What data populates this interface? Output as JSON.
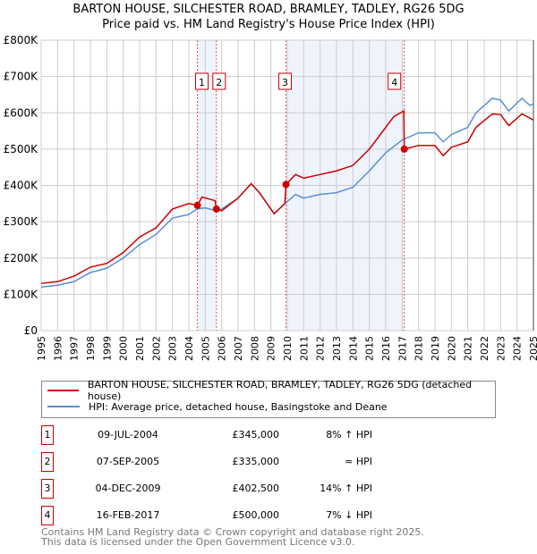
{
  "chart_data": {
    "type": "line",
    "title": "BARTON HOUSE, SILCHESTER ROAD, BRAMLEY, TADLEY, RG26 5DG",
    "subtitle": "Price paid vs. HM Land Registry's House Price Index (HPI)",
    "xlim": [
      1995,
      2025
    ],
    "ylim": [
      0,
      800000
    ],
    "yticks": [
      0,
      100000,
      200000,
      300000,
      400000,
      500000,
      600000,
      700000,
      800000
    ],
    "ytick_labels": [
      "£0",
      "£100K",
      "£200K",
      "£300K",
      "£400K",
      "£500K",
      "£600K",
      "£700K",
      "£800K"
    ],
    "xticks": [
      "1995",
      "1996",
      "1997",
      "1998",
      "1999",
      "2000",
      "2001",
      "2002",
      "2003",
      "2004",
      "2005",
      "2006",
      "2007",
      "2008",
      "2009",
      "2010",
      "2011",
      "2012",
      "2013",
      "2014",
      "2015",
      "2016",
      "2017",
      "2018",
      "2019",
      "2020",
      "2021",
      "2022",
      "2023",
      "2024",
      "2025"
    ],
    "grid": true,
    "series": [
      {
        "name": "BARTON HOUSE, SILCHESTER ROAD, BRAMLEY, TADLEY, RG26 5DG (detached house)",
        "color": "#cc0000",
        "x": [
          1995,
          1996,
          1997,
          1998,
          1999,
          2000,
          2001,
          2002,
          2003,
          2004,
          2004.52,
          2004.8,
          2005.6,
          2005.68,
          2006,
          2007,
          2007.8,
          2008.3,
          2009.2,
          2009.85,
          2009.92,
          2010.5,
          2011,
          2012,
          2013,
          2014,
          2015,
          2016,
          2016.5,
          2017.1,
          2017.13,
          2018,
          2019,
          2019.5,
          2020,
          2021,
          2021.5,
          2022.5,
          2023,
          2023.5,
          2024.3,
          2024.8,
          2025
        ],
        "y": [
          130000,
          135000,
          150000,
          175000,
          185000,
          215000,
          258000,
          283000,
          335000,
          350000,
          345000,
          368000,
          358000,
          335000,
          330000,
          365000,
          405000,
          380000,
          322000,
          350000,
          402500,
          430000,
          420000,
          430000,
          440000,
          455000,
          500000,
          560000,
          590000,
          605000,
          500000,
          510000,
          510000,
          482000,
          505000,
          520000,
          560000,
          597000,
          595000,
          565000,
          597000,
          585000,
          580000
        ]
      },
      {
        "name": "HPI: Average price, detached house, Basingstoke and Deane",
        "color": "#5b8fd0",
        "x": [
          1995,
          1996,
          1997,
          1998,
          1999,
          2000,
          2001,
          2002,
          2003,
          2004,
          2004.5,
          2005,
          2005.7,
          2006,
          2007,
          2007.8,
          2008.3,
          2009.2,
          2009.9,
          2010.5,
          2011,
          2012,
          2013,
          2014,
          2015,
          2016,
          2017,
          2018,
          2019,
          2019.5,
          2020,
          2021,
          2021.5,
          2022.5,
          2023,
          2023.5,
          2024.3,
          2024.8,
          2025
        ],
        "y": [
          120000,
          125000,
          135000,
          160000,
          172000,
          200000,
          237000,
          265000,
          310000,
          320000,
          335000,
          338000,
          330000,
          335000,
          365000,
          405000,
          380000,
          322000,
          352000,
          375000,
          365000,
          375000,
          380000,
          395000,
          440000,
          490000,
          525000,
          545000,
          545000,
          520000,
          540000,
          560000,
          600000,
          640000,
          635000,
          605000,
          640000,
          620000,
          625000
        ]
      }
    ],
    "sales": [
      {
        "id": "1",
        "x": 2004.52,
        "y": 345000
      },
      {
        "id": "2",
        "x": 2005.68,
        "y": 335000
      },
      {
        "id": "3",
        "x": 2009.92,
        "y": 402500
      },
      {
        "id": "4",
        "x": 2017.13,
        "y": 500000
      }
    ]
  },
  "legend": {
    "property": "BARTON HOUSE, SILCHESTER ROAD, BRAMLEY, TADLEY, RG26 5DG (detached house)",
    "hpi": "HPI: Average price, detached house, Basingstoke and Deane"
  },
  "transactions": [
    {
      "n": "1",
      "date": "09-JUL-2004",
      "price": "£345,000",
      "hpi": "8% ↑ HPI"
    },
    {
      "n": "2",
      "date": "07-SEP-2005",
      "price": "£335,000",
      "hpi": "≈ HPI"
    },
    {
      "n": "3",
      "date": "04-DEC-2009",
      "price": "£402,500",
      "hpi": "14% ↑ HPI"
    },
    {
      "n": "4",
      "date": "16-FEB-2017",
      "price": "£500,000",
      "hpi": "7% ↓ HPI"
    }
  ],
  "footer": {
    "line1": "Contains HM Land Registry data © Crown copyright and database right 2025.",
    "line2": "This data is licensed under the Open Government Licence v3.0."
  },
  "colors": {
    "property": "#cc0000",
    "hpi": "#5b8fd0",
    "shade": "#eef3fc"
  }
}
